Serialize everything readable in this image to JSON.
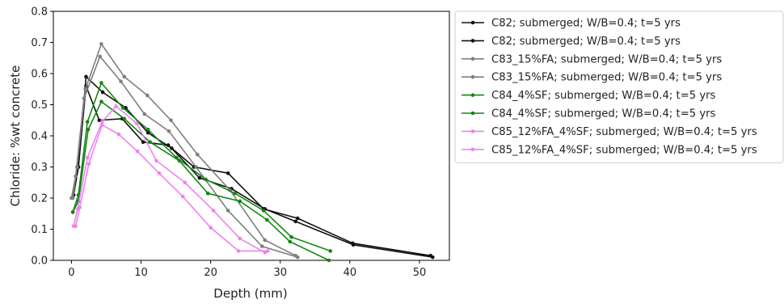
{
  "chart_data": {
    "type": "line",
    "title": "",
    "xlabel": "Depth (mm)",
    "ylabel": "Chloride: %wt concrete",
    "xlim": [
      -2.6,
      54.3
    ],
    "ylim": [
      0,
      0.8
    ],
    "xticks": [
      0,
      10,
      20,
      30,
      40,
      50
    ],
    "yticks": [
      0.0,
      0.1,
      0.2,
      0.3,
      0.4,
      0.5,
      0.6,
      0.7,
      0.8
    ],
    "grid": false,
    "legend_position": "outside-right",
    "series": [
      {
        "name": "C82; submerged; W/B=0.4; t=5 yrs",
        "color": "#111111",
        "x": [
          0.3,
          1.0,
          2.1,
          4.0,
          7.3,
          10.3,
          13.9,
          17.6,
          22.5,
          27.6,
          32.5,
          40.4,
          51.6
        ],
        "y": [
          0.21,
          0.3,
          0.56,
          0.45,
          0.455,
          0.38,
          0.37,
          0.3,
          0.28,
          0.165,
          0.135,
          0.055,
          0.015
        ]
      },
      {
        "name": "C82; submerged; W/B=0.4; t=5 yrs",
        "color": "#111111",
        "x": [
          0.3,
          1.0,
          2.1,
          4.5,
          7.8,
          11.0,
          14.4,
          18.4,
          23.0,
          27.8,
          32.2,
          40.5,
          51.9
        ],
        "y": [
          0.21,
          0.3,
          0.59,
          0.54,
          0.49,
          0.41,
          0.36,
          0.265,
          0.23,
          0.165,
          0.125,
          0.05,
          0.01
        ]
      },
      {
        "name": "C83_15%FA; submerged; W/B=0.4; t=5 yrs",
        "color": "#7f7f7f",
        "x": [
          0.0,
          0.6,
          1.8,
          4.1,
          7.1,
          10.5,
          14.0,
          17.9,
          22.5,
          27.4,
          32.5
        ],
        "y": [
          0.2,
          0.27,
          0.52,
          0.655,
          0.575,
          0.47,
          0.415,
          0.3,
          0.16,
          0.045,
          0.01
        ]
      },
      {
        "name": "C83_15%FA; submerged; W/B=0.4; t=5 yrs",
        "color": "#7f7f7f",
        "x": [
          0.2,
          0.8,
          2.0,
          4.3,
          7.6,
          10.9,
          14.3,
          18.1,
          22.8,
          27.8,
          32.2
        ],
        "y": [
          0.2,
          0.3,
          0.55,
          0.695,
          0.59,
          0.53,
          0.45,
          0.34,
          0.225,
          0.065,
          0.015
        ]
      },
      {
        "name": "C84_4%SF; submerged; W/B=0.4; t=5 yrs",
        "color": "#138613",
        "x": [
          0.2,
          1.0,
          2.3,
          4.3,
          7.4,
          11.0,
          15.1,
          19.3,
          23.5,
          27.6,
          31.6,
          37.2
        ],
        "y": [
          0.155,
          0.21,
          0.445,
          0.57,
          0.49,
          0.42,
          0.33,
          0.26,
          0.215,
          0.16,
          0.075,
          0.03
        ]
      },
      {
        "name": "C84_4%SF; submerged; W/B=0.4; t=5 yrs",
        "color": "#138613",
        "x": [
          0.2,
          1.0,
          2.4,
          4.3,
          7.6,
          11.3,
          15.5,
          19.6,
          24.2,
          28.1,
          31.4,
          37.0
        ],
        "y": [
          0.155,
          0.19,
          0.42,
          0.51,
          0.455,
          0.38,
          0.32,
          0.215,
          0.19,
          0.13,
          0.06,
          0.0
        ]
      },
      {
        "name": "C85_12%FA_4%SF; submerged; W/B=0.4; t=5 yrs",
        "color": "#ee82ee",
        "x": [
          0.3,
          0.9,
          2.3,
          4.4,
          6.4,
          9.4,
          12.2,
          16.3,
          20.4,
          24.2,
          27.8
        ],
        "y": [
          0.11,
          0.165,
          0.33,
          0.445,
          0.495,
          0.44,
          0.32,
          0.25,
          0.16,
          0.07,
          0.025
        ]
      },
      {
        "name": "C85_12%FA_4%SF; submerged; W/B=0.4; t=5 yrs",
        "color": "#ee82ee",
        "x": [
          0.6,
          1.2,
          2.5,
          4.4,
          6.8,
          9.5,
          12.6,
          16.0,
          20.0,
          24.0,
          28.2
        ],
        "y": [
          0.11,
          0.17,
          0.31,
          0.435,
          0.405,
          0.35,
          0.28,
          0.205,
          0.105,
          0.03,
          0.03
        ]
      }
    ]
  }
}
